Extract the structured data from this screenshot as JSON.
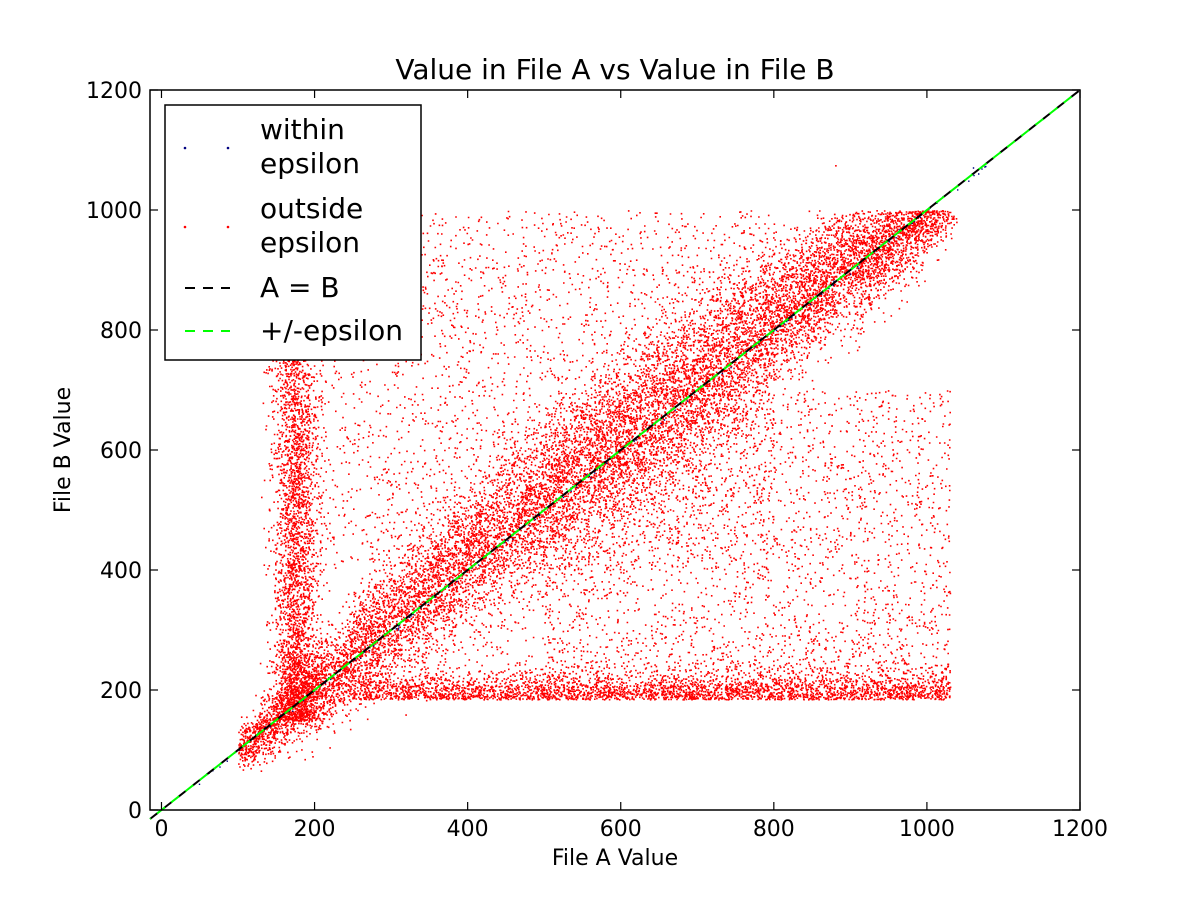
{
  "chart_data": {
    "type": "scatter",
    "title": "Value in File A vs Value in File B",
    "xlabel": "File A Value",
    "ylabel": "File B Value",
    "xlim": [
      -15,
      1200
    ],
    "ylim": [
      0,
      1200
    ],
    "x_ticks": [
      0,
      200,
      400,
      600,
      800,
      1000,
      1200
    ],
    "y_ticks": [
      0,
      200,
      400,
      600,
      800,
      1000,
      1200
    ],
    "x_tick_labels": [
      "0",
      "200",
      "400",
      "600",
      "800",
      "1000",
      "1200"
    ],
    "y_tick_labels": [
      "0",
      "200",
      "400",
      "600",
      "800",
      "1000",
      "1200"
    ],
    "grid": false,
    "legend_position": "top-left",
    "legend": [
      {
        "label_lines": [
          "within",
          "epsilon"
        ],
        "kind": "dot",
        "color": "#000080"
      },
      {
        "label_lines": [
          "outside",
          "epsilon"
        ],
        "kind": "dot",
        "color": "#ff0000"
      },
      {
        "label_lines": [
          "A = B"
        ],
        "kind": "dash",
        "color": "#000000"
      },
      {
        "label_lines": [
          "+/-epsilon"
        ],
        "kind": "dash",
        "color": "#00ff00"
      }
    ],
    "series": [
      {
        "kind": "points",
        "color": "#ff0000",
        "approx_point_count": 250000,
        "clusters": [
          {
            "description": "dense band along diagonal",
            "x": [
              100,
              1080
            ],
            "y_offset_sd": 60,
            "weight": 0.55
          },
          {
            "description": "vertical stripe near A=170",
            "x_center": 175,
            "x_sd": 15,
            "y": [
              150,
              800
            ],
            "weight": 0.12
          },
          {
            "description": "horizontal band near B=180",
            "x": [
              250,
              1030
            ],
            "y_center": 185,
            "y_sd": 20,
            "weight": 0.13
          },
          {
            "description": "diffuse upper-left scatter",
            "x": [
              200,
              800
            ],
            "y": [
              400,
              1000
            ],
            "weight": 0.1
          },
          {
            "description": "diffuse lower-right scatter",
            "x": [
              500,
              1030
            ],
            "y": [
              200,
              700
            ],
            "weight": 0.1
          }
        ],
        "outliers": [
          {
            "x": 965,
            "y": 300
          },
          {
            "x": 980,
            "y": 318
          },
          {
            "x": 1000,
            "y": 305
          },
          {
            "x": 880,
            "y": 1075
          }
        ]
      },
      {
        "kind": "points",
        "color": "#000080",
        "approx_point_count": 150,
        "x": [
          40,
          1085
        ]
      },
      {
        "kind": "line",
        "style": "dashed",
        "color": "#000000",
        "x": [
          -15,
          1200
        ],
        "y": [
          -15,
          1200
        ]
      },
      {
        "kind": "line",
        "style": "dashed",
        "color": "#00ff00",
        "x": [
          -15,
          1190
        ],
        "y": [
          -15,
          1190
        ]
      }
    ]
  }
}
